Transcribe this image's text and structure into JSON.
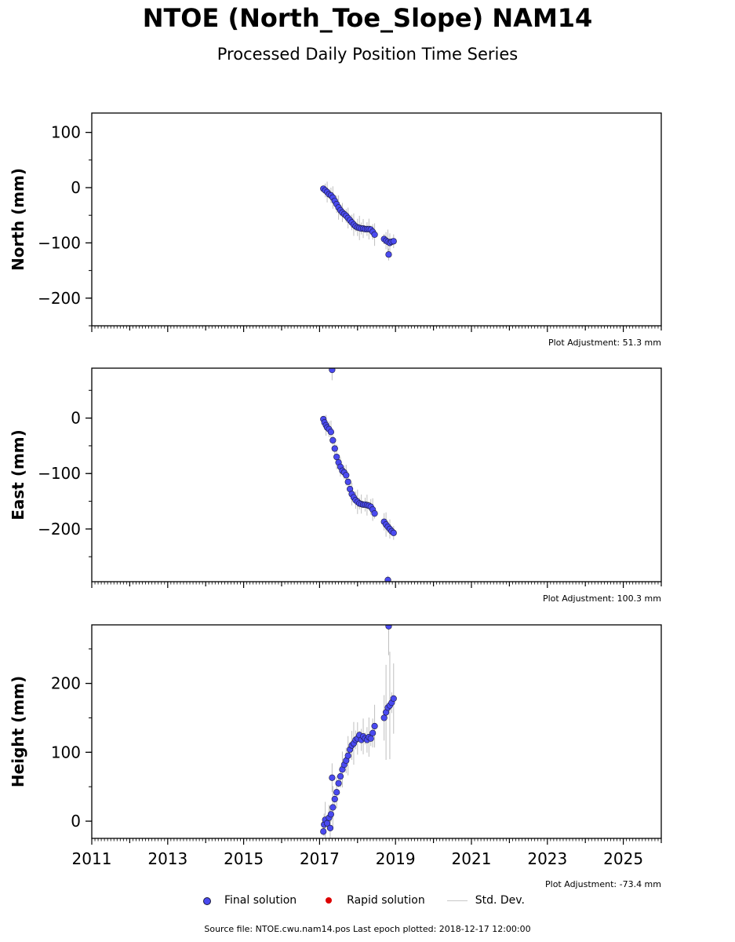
{
  "title": "NTOE (North_Toe_Slope) NAM14",
  "subtitle": "Processed Daily Position Time Series",
  "footer": "Source file: NTOE.cwu.nam14.pos  Last epoch plotted: 2018-12-17 12:00:00",
  "legend": {
    "final": "Final solution",
    "rapid": "Rapid solution",
    "std": "Std. Dev."
  },
  "colors": {
    "final": "#4a4af0",
    "final_edge": "#1a1a3a",
    "rapid": "#dd0000",
    "std": "#8a8a8a"
  },
  "chart_data": [
    {
      "type": "scatter",
      "ylabel": "North (mm)",
      "adjustment": "Plot Adjustment: 51.3 mm",
      "xlim": [
        2011,
        2026
      ],
      "ylim": [
        -250,
        135
      ],
      "yticks": [
        100,
        0,
        -100,
        -200
      ],
      "yticklabels": [
        "100",
        "0",
        "−100",
        "−200"
      ],
      "series": [
        {
          "points": [
            [
              2017.1,
              -2
            ],
            [
              2017.15,
              -5
            ],
            [
              2017.2,
              -8
            ],
            [
              2017.25,
              -12
            ],
            [
              2017.3,
              -14
            ],
            [
              2017.35,
              -18
            ],
            [
              2017.4,
              -24
            ],
            [
              2017.45,
              -30
            ],
            [
              2017.5,
              -36
            ],
            [
              2017.55,
              -41
            ],
            [
              2017.6,
              -45
            ],
            [
              2017.65,
              -48
            ],
            [
              2017.7,
              -51
            ],
            [
              2017.75,
              -55
            ],
            [
              2017.8,
              -59
            ],
            [
              2017.85,
              -63
            ],
            [
              2017.9,
              -67
            ],
            [
              2017.95,
              -70
            ],
            [
              2018.0,
              -72
            ],
            [
              2018.05,
              -73
            ],
            [
              2018.1,
              -74
            ],
            [
              2018.15,
              -74
            ],
            [
              2018.2,
              -75
            ],
            [
              2018.25,
              -75
            ],
            [
              2018.3,
              -75
            ],
            [
              2018.35,
              -76
            ],
            [
              2018.4,
              -80
            ],
            [
              2018.45,
              -85
            ],
            [
              2018.7,
              -93
            ],
            [
              2018.75,
              -96
            ],
            [
              2018.8,
              -98
            ],
            [
              2018.82,
              -121
            ],
            [
              2018.85,
              -100
            ],
            [
              2018.9,
              -98
            ],
            [
              2018.95,
              -97
            ]
          ]
        }
      ]
    },
    {
      "type": "scatter",
      "ylabel": "East (mm)",
      "adjustment": "Plot Adjustment: 100.3 mm",
      "xlim": [
        2011,
        2026
      ],
      "ylim": [
        -295,
        90
      ],
      "yticks": [
        0,
        -100,
        -200
      ],
      "yticklabels": [
        "0",
        "−100",
        "−200"
      ],
      "series": [
        {
          "points": [
            [
              2017.1,
              -2
            ],
            [
              2017.13,
              -8
            ],
            [
              2017.17,
              -13
            ],
            [
              2017.2,
              -17
            ],
            [
              2017.25,
              -20
            ],
            [
              2017.3,
              -25
            ],
            [
              2017.35,
              -40
            ],
            [
              2017.4,
              -55
            ],
            [
              2017.45,
              -70
            ],
            [
              2017.5,
              -80
            ],
            [
              2017.55,
              -88
            ],
            [
              2017.6,
              -95
            ],
            [
              2017.65,
              -98
            ],
            [
              2017.7,
              -103
            ],
            [
              2017.75,
              -115
            ],
            [
              2017.8,
              -128
            ],
            [
              2017.85,
              -137
            ],
            [
              2017.9,
              -143
            ],
            [
              2017.95,
              -148
            ],
            [
              2018.0,
              -151
            ],
            [
              2018.05,
              -154
            ],
            [
              2018.1,
              -155
            ],
            [
              2018.15,
              -156
            ],
            [
              2018.2,
              -156
            ],
            [
              2018.25,
              -157
            ],
            [
              2018.3,
              -158
            ],
            [
              2018.35,
              -160
            ],
            [
              2018.4,
              -165
            ],
            [
              2018.45,
              -172
            ],
            [
              2018.7,
              -187
            ],
            [
              2018.75,
              -192
            ],
            [
              2018.8,
              -196
            ],
            [
              2018.85,
              -200
            ],
            [
              2018.9,
              -204
            ],
            [
              2018.95,
              -207
            ],
            [
              2017.33,
              87
            ],
            [
              2018.8,
              -292
            ]
          ]
        }
      ]
    },
    {
      "type": "scatter",
      "ylabel": "Height (mm)",
      "adjustment": "Plot Adjustment: -73.4 mm",
      "xlim": [
        2011,
        2026
      ],
      "xticks": [
        2011,
        2013,
        2015,
        2017,
        2019,
        2021,
        2023,
        2025
      ],
      "xticklabels": [
        "2011",
        "2013",
        "2015",
        "2017",
        "2019",
        "2021",
        "2023",
        "2025"
      ],
      "ylim": [
        -25,
        285
      ],
      "yticks": [
        0,
        100,
        200
      ],
      "yticklabels": [
        "0",
        "100",
        "200"
      ],
      "series": [
        {
          "points": [
            [
              2017.1,
              -15
            ],
            [
              2017.12,
              -5
            ],
            [
              2017.15,
              2
            ],
            [
              2017.2,
              -3
            ],
            [
              2017.25,
              5
            ],
            [
              2017.28,
              -10
            ],
            [
              2017.3,
              10
            ],
            [
              2017.33,
              63
            ],
            [
              2017.35,
              20
            ],
            [
              2017.4,
              32
            ],
            [
              2017.45,
              42
            ],
            [
              2017.5,
              55
            ],
            [
              2017.55,
              65
            ],
            [
              2017.6,
              75
            ],
            [
              2017.65,
              82
            ],
            [
              2017.7,
              88
            ],
            [
              2017.75,
              95
            ],
            [
              2017.8,
              104
            ],
            [
              2017.85,
              110
            ],
            [
              2017.9,
              113
            ],
            [
              2017.95,
              118
            ],
            [
              2018.0,
              120
            ],
            [
              2018.05,
              125
            ],
            [
              2018.1,
              118
            ],
            [
              2018.15,
              123
            ],
            [
              2018.2,
              120
            ],
            [
              2018.25,
              118
            ],
            [
              2018.3,
              122
            ],
            [
              2018.35,
              120
            ],
            [
              2018.4,
              128
            ],
            [
              2018.45,
              138
            ],
            [
              2018.7,
              150
            ],
            [
              2018.75,
              158
            ],
            [
              2018.8,
              165
            ],
            [
              2018.82,
              283
            ],
            [
              2018.85,
              168
            ],
            [
              2018.9,
              172
            ],
            [
              2018.95,
              178
            ]
          ]
        }
      ]
    }
  ]
}
